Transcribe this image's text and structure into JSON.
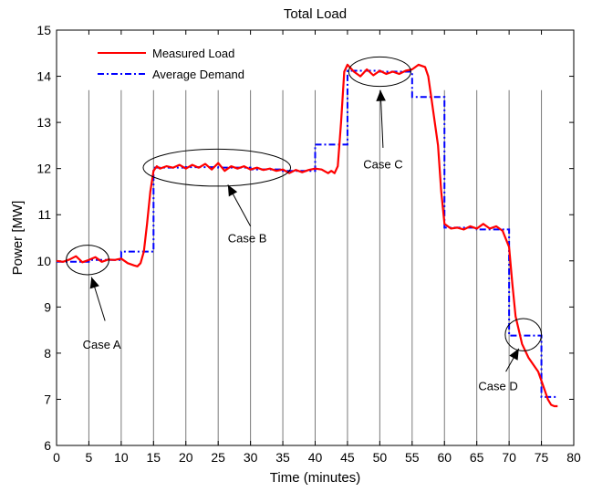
{
  "chart_data": {
    "type": "line",
    "title": "Total Load",
    "xlabel": "Time (minutes)",
    "ylabel": "Power [MW]",
    "xlim": [
      0,
      80
    ],
    "ylim": [
      6,
      15
    ],
    "xticks": [
      0,
      5,
      10,
      15,
      20,
      25,
      30,
      35,
      40,
      45,
      50,
      55,
      60,
      65,
      70,
      75,
      80
    ],
    "yticks": [
      6,
      7,
      8,
      9,
      10,
      11,
      12,
      13,
      14,
      15
    ],
    "vertical_lines": {
      "x": [
        5,
        10,
        15,
        20,
        25,
        30,
        35,
        40,
        45,
        50,
        55,
        60,
        65,
        70,
        75
      ],
      "y_top": 13.7
    },
    "legend": {
      "placement": "top-left",
      "entries": [
        "Measured Load",
        "Average Demand"
      ]
    },
    "series": [
      {
        "name": "Measured Load",
        "style": "solid",
        "color": "#ff0000",
        "points": [
          [
            0,
            10.0
          ],
          [
            1,
            9.98
          ],
          [
            2,
            10.03
          ],
          [
            3,
            10.1
          ],
          [
            4,
            9.97
          ],
          [
            5,
            10.02
          ],
          [
            6,
            10.08
          ],
          [
            7,
            9.98
          ],
          [
            8,
            10.03
          ],
          [
            9,
            10.02
          ],
          [
            10,
            10.05
          ],
          [
            11,
            9.95
          ],
          [
            12,
            9.9
          ],
          [
            12.5,
            9.88
          ],
          [
            13,
            9.95
          ],
          [
            13.5,
            10.2
          ],
          [
            14,
            10.8
          ],
          [
            14.5,
            11.5
          ],
          [
            15,
            11.95
          ],
          [
            15.5,
            12.05
          ],
          [
            16,
            12.0
          ],
          [
            17,
            12.05
          ],
          [
            18,
            12.02
          ],
          [
            19,
            12.08
          ],
          [
            20,
            12.0
          ],
          [
            21,
            12.08
          ],
          [
            22,
            12.02
          ],
          [
            23,
            12.1
          ],
          [
            24,
            11.98
          ],
          [
            25,
            12.12
          ],
          [
            26,
            11.95
          ],
          [
            27,
            12.05
          ],
          [
            28,
            12.0
          ],
          [
            29,
            12.05
          ],
          [
            30,
            11.98
          ],
          [
            31,
            12.02
          ],
          [
            32,
            11.97
          ],
          [
            33,
            12.0
          ],
          [
            34,
            11.95
          ],
          [
            35,
            11.98
          ],
          [
            36,
            11.9
          ],
          [
            37,
            11.97
          ],
          [
            38,
            11.92
          ],
          [
            39,
            11.97
          ],
          [
            40,
            12.0
          ],
          [
            41,
            11.98
          ],
          [
            42,
            11.9
          ],
          [
            42.5,
            11.95
          ],
          [
            43,
            11.9
          ],
          [
            43.5,
            12.05
          ],
          [
            44,
            13.0
          ],
          [
            44.5,
            14.1
          ],
          [
            45,
            14.25
          ],
          [
            46,
            14.1
          ],
          [
            47,
            14.0
          ],
          [
            48,
            14.15
          ],
          [
            49,
            14.02
          ],
          [
            50,
            14.12
          ],
          [
            51,
            14.05
          ],
          [
            52,
            14.1
          ],
          [
            53,
            14.05
          ],
          [
            54,
            14.12
          ],
          [
            55,
            14.15
          ],
          [
            56,
            14.25
          ],
          [
            57,
            14.2
          ],
          [
            57.5,
            14.0
          ],
          [
            58,
            13.5
          ],
          [
            59,
            12.5
          ],
          [
            59.5,
            11.5
          ],
          [
            60,
            10.8
          ],
          [
            61,
            10.7
          ],
          [
            62,
            10.72
          ],
          [
            63,
            10.68
          ],
          [
            64,
            10.75
          ],
          [
            65,
            10.7
          ],
          [
            66,
            10.8
          ],
          [
            67,
            10.7
          ],
          [
            68,
            10.75
          ],
          [
            69,
            10.65
          ],
          [
            70,
            10.3
          ],
          [
            70.5,
            9.5
          ],
          [
            71,
            8.8
          ],
          [
            72,
            8.2
          ],
          [
            73,
            7.9
          ],
          [
            74,
            7.7
          ],
          [
            74.5,
            7.6
          ],
          [
            75,
            7.4
          ],
          [
            76,
            7.0
          ],
          [
            76.5,
            6.88
          ],
          [
            77,
            6.85
          ],
          [
            77.5,
            6.85
          ]
        ]
      },
      {
        "name": "Average Demand",
        "style": "dash-dot",
        "color": "#0000ff",
        "steps": [
          [
            0,
            5,
            9.98
          ],
          [
            5,
            10,
            10.02
          ],
          [
            10,
            15,
            10.2
          ],
          [
            15,
            20,
            12.02
          ],
          [
            20,
            25,
            12.03
          ],
          [
            25,
            30,
            12.02
          ],
          [
            30,
            35,
            11.98
          ],
          [
            35,
            40,
            11.95
          ],
          [
            40,
            45,
            12.52
          ],
          [
            45,
            50,
            14.12
          ],
          [
            50,
            55,
            14.1
          ],
          [
            55,
            60,
            13.55
          ],
          [
            60,
            65,
            10.72
          ],
          [
            65,
            70,
            10.68
          ],
          [
            70,
            75,
            8.38
          ],
          [
            75,
            77.5,
            7.05
          ]
        ]
      }
    ],
    "annotations": [
      {
        "label": "Case A",
        "ellipse": {
          "cx": 4.8,
          "cy": 10.02,
          "rx": 3.3,
          "ry": 0.32
        },
        "arrow_from": [
          7.5,
          8.7
        ],
        "arrow_to": [
          5.4,
          9.65
        ],
        "text_at": [
          7.0,
          8.2
        ]
      },
      {
        "label": "Case B",
        "ellipse": {
          "cx": 24.8,
          "cy": 12.02,
          "rx": 11.4,
          "ry": 0.4
        },
        "arrow_from": [
          30.0,
          10.75
        ],
        "arrow_to": [
          26.5,
          11.65
        ],
        "text_at": [
          29.5,
          10.5
        ]
      },
      {
        "label": "Case C",
        "ellipse": {
          "cx": 50.0,
          "cy": 14.1,
          "rx": 4.8,
          "ry": 0.32
        },
        "arrow_from": [
          50.5,
          12.45
        ],
        "arrow_to": [
          50.1,
          13.7
        ],
        "text_at": [
          50.5,
          12.1
        ]
      },
      {
        "label": "Case D",
        "ellipse": {
          "cx": 72.2,
          "cy": 8.4,
          "rx": 2.8,
          "ry": 0.35
        },
        "arrow_from": [
          69.5,
          7.6
        ],
        "arrow_to": [
          71.5,
          8.1
        ],
        "text_at": [
          68.3,
          7.3
        ]
      }
    ]
  }
}
